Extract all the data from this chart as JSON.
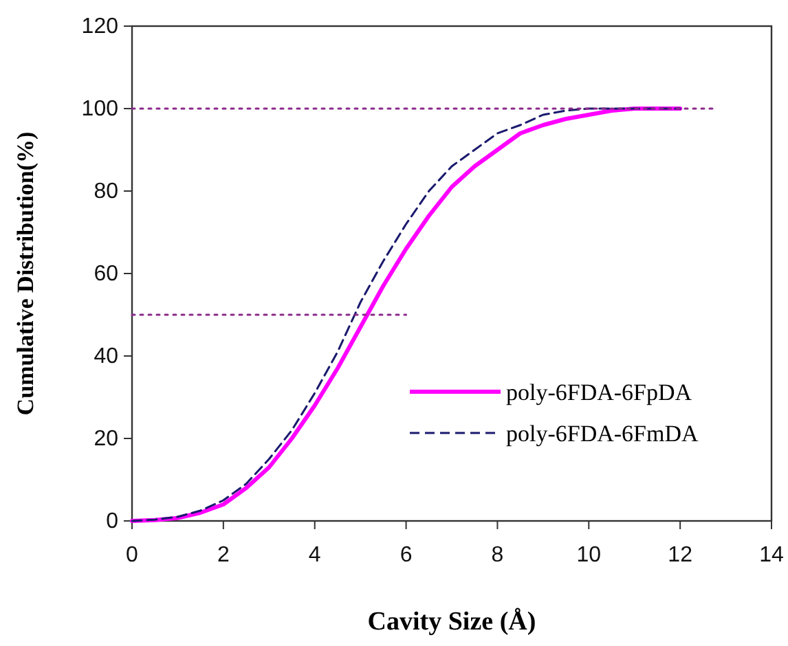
{
  "chart_data": {
    "type": "line",
    "xlabel": "Cavity Size (Å)",
    "ylabel": "Cumulative Distribution(%)",
    "xlim": [
      0,
      14
    ],
    "ylim": [
      0,
      120
    ],
    "xticks": [
      0,
      2,
      4,
      6,
      8,
      10,
      12,
      14
    ],
    "yticks": [
      0,
      20,
      40,
      60,
      80,
      100,
      120
    ],
    "grid": false,
    "legend": "right",
    "marker": "none",
    "series": [
      {
        "name": "poly-6FDA-6FpDA",
        "color": "#ff00ff",
        "line_style": "solid",
        "x": [
          0,
          0.5,
          1,
          1.5,
          2,
          2.5,
          3,
          3.5,
          4,
          4.5,
          5,
          5.5,
          6,
          6.5,
          7,
          7.5,
          8,
          8.5,
          9,
          9.5,
          10,
          10.5,
          11,
          12
        ],
        "values": [
          0,
          0.2,
          0.7,
          2,
          4,
          8,
          13,
          20,
          28,
          37,
          47,
          57,
          66,
          74,
          81,
          86,
          90,
          94,
          96,
          97.5,
          98.5,
          99.5,
          100,
          100
        ]
      },
      {
        "name": "poly-6FDA-6FmDA",
        "color": "#1a1a6e",
        "line_style": "dashed",
        "x": [
          0,
          0.5,
          1,
          1.5,
          2,
          2.5,
          3,
          3.5,
          4,
          4.5,
          5,
          5.5,
          6,
          6.5,
          7,
          7.5,
          8,
          8.5,
          9,
          9.5,
          10,
          12
        ],
        "values": [
          0,
          0.3,
          1,
          2.5,
          5,
          9,
          15,
          22,
          31,
          41,
          53,
          63,
          72,
          80,
          86,
          90,
          94,
          96,
          98.5,
          99.5,
          100,
          100
        ]
      },
      {
        "color": "#8b2a8b",
        "line_style": "dotted",
        "x": [
          0,
          12.8
        ],
        "values": [
          100,
          100
        ]
      },
      {
        "color": "#8b2a8b",
        "line_style": "dotted",
        "x": [
          0,
          6
        ],
        "values": [
          50,
          50
        ]
      }
    ]
  }
}
